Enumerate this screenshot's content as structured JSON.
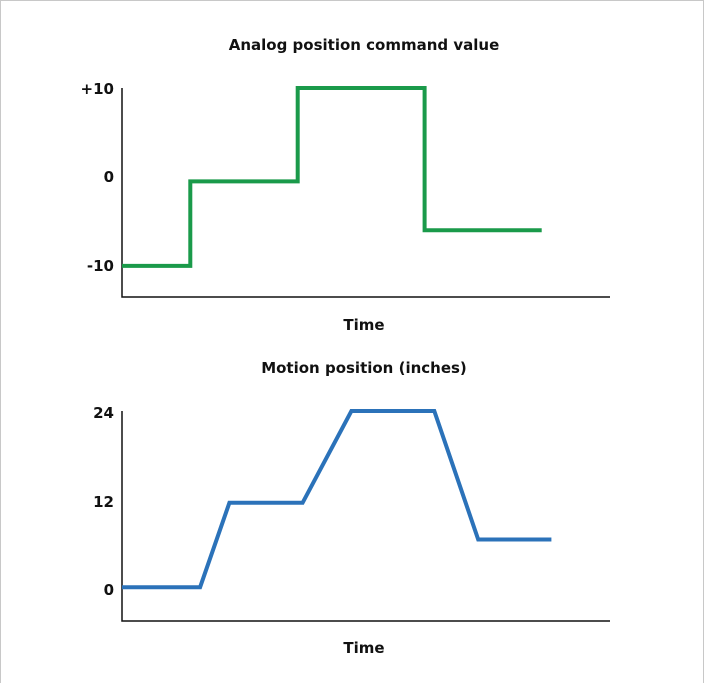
{
  "chart_data": [
    {
      "type": "line",
      "title": "Analog position command value",
      "xlabel": "Time",
      "ylabel": "",
      "yticks": [
        "+10",
        "0",
        "-10"
      ],
      "ytick_values": [
        10,
        0,
        -10
      ],
      "ylim": [
        -13.5,
        10
      ],
      "xlim": [
        0,
        100
      ],
      "color": "#1a9a4a",
      "series": [
        {
          "x": [
            0,
            14,
            14,
            36,
            36,
            62,
            62,
            86
          ],
          "y": [
            -10,
            -10,
            -0.5,
            -0.5,
            10,
            10,
            -6,
            -6
          ]
        }
      ]
    },
    {
      "type": "line",
      "title": "Motion position (inches)",
      "xlabel": "Time",
      "ylabel": "",
      "yticks": [
        "24",
        "12",
        "0"
      ],
      "ytick_values": [
        24,
        12,
        0
      ],
      "ylim": [
        -4.6,
        24
      ],
      "xlim": [
        0,
        100
      ],
      "color": "#2b72b9",
      "series": [
        {
          "x": [
            0,
            16,
            22,
            37,
            47,
            64,
            73,
            88
          ],
          "y": [
            0,
            0,
            11.5,
            11.5,
            24,
            24,
            6.5,
            6.5
          ]
        }
      ]
    }
  ]
}
